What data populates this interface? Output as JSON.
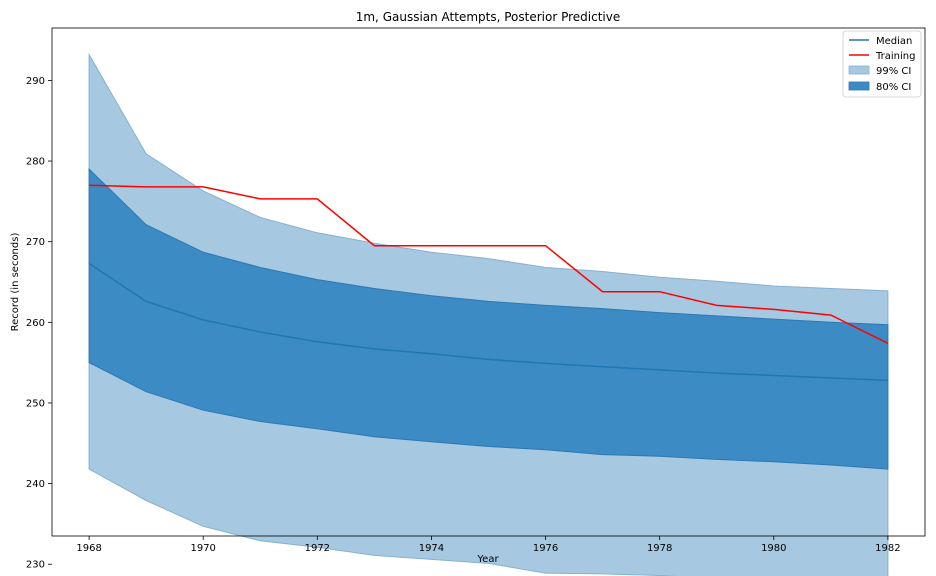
{
  "chart_data": {
    "type": "area",
    "title": "1m, Gaussian Attempts, Posterior Predictive",
    "xlabel": "Year",
    "ylabel": "Record (in seconds)",
    "xlim": [
      1967.35,
      1982.65
    ],
    "ylim": [
      233.5,
      296.5
    ],
    "xticks": [
      1968,
      1970,
      1972,
      1974,
      1976,
      1978,
      1980,
      1982
    ],
    "yticks": [
      230,
      240,
      250,
      260,
      270,
      280,
      290
    ],
    "legend_position": "top-right",
    "grid": false,
    "x": [
      1968,
      1969,
      1970,
      1971,
      1972,
      1973,
      1974,
      1975,
      1976,
      1977,
      1978,
      1979,
      1980,
      1981,
      1982
    ],
    "series": [
      {
        "name": "Median",
        "kind": "line",
        "color": "#1f77b4",
        "values": [
          267.3,
          262.6,
          260.3,
          258.8,
          257.6,
          256.7,
          256.1,
          255.4,
          254.9,
          254.5,
          254.1,
          253.7,
          253.4,
          253.1,
          252.8
        ]
      },
      {
        "name": "Training",
        "kind": "line",
        "color": "#ff0000",
        "values": [
          277.0,
          276.8,
          276.8,
          275.3,
          275.3,
          269.5,
          269.5,
          269.5,
          269.5,
          263.8,
          263.8,
          262.1,
          261.6,
          260.9,
          257.4
        ]
      },
      {
        "name": "99% CI",
        "kind": "band",
        "color": "#a6c8e0",
        "lower": [
          241.8,
          237.9,
          234.7,
          232.9,
          232.1,
          231.1,
          230.6,
          230.1,
          228.9,
          228.8,
          228.6,
          228.2,
          227.9,
          227.3,
          226.8
        ],
        "upper": [
          293.2,
          280.9,
          276.3,
          273.0,
          271.1,
          269.8,
          268.7,
          267.9,
          266.8,
          266.3,
          265.6,
          265.1,
          264.5,
          264.2,
          263.9
        ]
      },
      {
        "name": "80% CI",
        "kind": "band",
        "color": "#3d8bc4",
        "lower": [
          255.0,
          251.4,
          249.1,
          247.7,
          246.8,
          245.8,
          245.2,
          244.6,
          244.2,
          243.6,
          243.4,
          243.0,
          242.7,
          242.3,
          241.8
        ],
        "upper": [
          279.0,
          272.1,
          268.7,
          266.8,
          265.3,
          264.2,
          263.3,
          262.6,
          262.1,
          261.7,
          261.2,
          260.8,
          260.4,
          260.0,
          259.7
        ]
      }
    ]
  }
}
